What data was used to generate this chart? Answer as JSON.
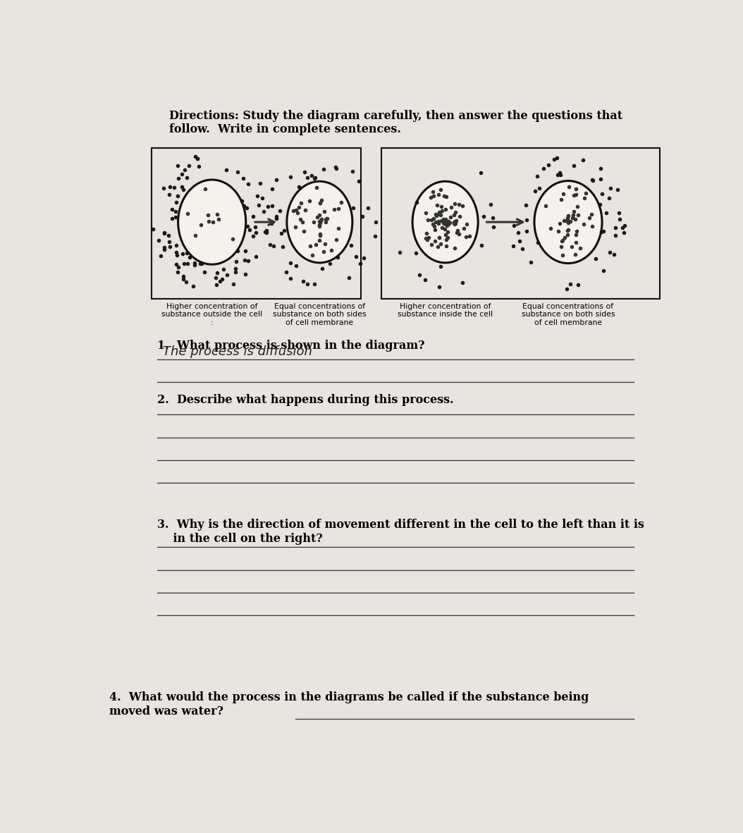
{
  "bg_color": "#e8e5e0",
  "paper_color": "#ede9e4",
  "directions": "Directions: Study the diagram carefully, then answer the questions that\nfollow.  Write in complete sentences.",
  "q1_label": "1.  What process is shown in the diagram?",
  "q1_answer_hand": "The process is diffusion",
  "q2_label": "2.  Describe what happens during this process.",
  "q3_label": "3.  Why is the direction of movement different in the cell to the left than it is\n    in the cell on the right?",
  "q4_label": "4.  What would the process in the diagrams be called if the substance being\nmoved was water?",
  "caption_left1": "Higher concentration of\nsubstance outside the cell\n:",
  "caption_left2": "Equal concentrations of\nsubstance on both sides\nof cell membrane",
  "caption_right1": "Higher concentration of\nsubstance inside the cell",
  "caption_right2": "Equal concentrations of\nsubstance on both sides\nof cell membrane",
  "dot_color_dark": "#1a1a1a",
  "dot_color_medium": "#333333",
  "dot_color_light": "#555555"
}
